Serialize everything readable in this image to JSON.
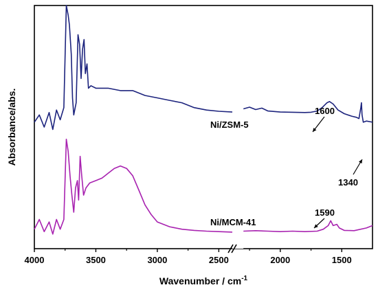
{
  "chart_data": {
    "type": "line",
    "title": "",
    "xlabel": "Wavenumber / cm",
    "xlabel_superscript": "-1",
    "ylabel": "Absorbance/abs.",
    "x_reversed": true,
    "x_axis_break": [
      2390,
      2300
    ],
    "xlim": [
      4000,
      1250
    ],
    "xticks": [
      {
        "value": 4000,
        "label": "4000"
      },
      {
        "value": 3500,
        "label": "3500"
      },
      {
        "value": 3000,
        "label": "3000"
      },
      {
        "value": 2500,
        "label": "2500"
      },
      {
        "value": 2000,
        "label": "2000"
      },
      {
        "value": 1500,
        "label": "1500"
      }
    ],
    "y_ticks_shown": false,
    "grid": false,
    "legend": "none",
    "series": [
      {
        "name": "Ni/ZSM-5",
        "color": "#1c237d",
        "points": [
          [
            4000,
            0.52
          ],
          [
            3960,
            0.55
          ],
          [
            3920,
            0.5
          ],
          [
            3880,
            0.56
          ],
          [
            3850,
            0.49
          ],
          [
            3820,
            0.57
          ],
          [
            3790,
            0.53
          ],
          [
            3760,
            0.58
          ],
          [
            3740,
            1.0
          ],
          [
            3725,
            0.96
          ],
          [
            3715,
            0.92
          ],
          [
            3700,
            0.8
          ],
          [
            3690,
            0.62
          ],
          [
            3680,
            0.55
          ],
          [
            3660,
            0.6
          ],
          [
            3645,
            0.88
          ],
          [
            3632,
            0.84
          ],
          [
            3620,
            0.7
          ],
          [
            3608,
            0.82
          ],
          [
            3596,
            0.86
          ],
          [
            3585,
            0.72
          ],
          [
            3572,
            0.76
          ],
          [
            3560,
            0.66
          ],
          [
            3540,
            0.67
          ],
          [
            3500,
            0.66
          ],
          [
            3400,
            0.66
          ],
          [
            3300,
            0.65
          ],
          [
            3200,
            0.65
          ],
          [
            3100,
            0.63
          ],
          [
            3000,
            0.62
          ],
          [
            2900,
            0.61
          ],
          [
            2800,
            0.6
          ],
          [
            2700,
            0.58
          ],
          [
            2600,
            0.57
          ],
          [
            2500,
            0.565
          ],
          [
            2390,
            0.562
          ],
          [
            2300,
            0.575
          ],
          [
            2250,
            0.582
          ],
          [
            2200,
            0.572
          ],
          [
            2150,
            0.578
          ],
          [
            2100,
            0.566
          ],
          [
            2000,
            0.562
          ],
          [
            1900,
            0.561
          ],
          [
            1800,
            0.56
          ],
          [
            1750,
            0.561
          ],
          [
            1700,
            0.566
          ],
          [
            1660,
            0.58
          ],
          [
            1620,
            0.6
          ],
          [
            1600,
            0.605
          ],
          [
            1570,
            0.595
          ],
          [
            1530,
            0.57
          ],
          [
            1480,
            0.555
          ],
          [
            1420,
            0.545
          ],
          [
            1380,
            0.54
          ],
          [
            1360,
            0.535
          ],
          [
            1345,
            0.58
          ],
          [
            1340,
            0.6
          ],
          [
            1335,
            0.55
          ],
          [
            1325,
            0.52
          ],
          [
            1300,
            0.525
          ],
          [
            1250,
            0.52
          ]
        ]
      },
      {
        "name": "Ni/MCM-41",
        "color": "#a822b0",
        "points": [
          [
            4000,
            0.08
          ],
          [
            3960,
            0.12
          ],
          [
            3920,
            0.07
          ],
          [
            3880,
            0.11
          ],
          [
            3850,
            0.06
          ],
          [
            3820,
            0.12
          ],
          [
            3790,
            0.08
          ],
          [
            3760,
            0.12
          ],
          [
            3740,
            0.45
          ],
          [
            3725,
            0.4
          ],
          [
            3710,
            0.3
          ],
          [
            3695,
            0.22
          ],
          [
            3680,
            0.15
          ],
          [
            3665,
            0.25
          ],
          [
            3650,
            0.28
          ],
          [
            3640,
            0.2
          ],
          [
            3628,
            0.38
          ],
          [
            3615,
            0.3
          ],
          [
            3600,
            0.22
          ],
          [
            3580,
            0.25
          ],
          [
            3550,
            0.27
          ],
          [
            3500,
            0.28
          ],
          [
            3450,
            0.29
          ],
          [
            3400,
            0.31
          ],
          [
            3350,
            0.33
          ],
          [
            3300,
            0.34
          ],
          [
            3250,
            0.33
          ],
          [
            3200,
            0.3
          ],
          [
            3150,
            0.24
          ],
          [
            3100,
            0.18
          ],
          [
            3050,
            0.14
          ],
          [
            3000,
            0.11
          ],
          [
            2900,
            0.09
          ],
          [
            2800,
            0.08
          ],
          [
            2700,
            0.075
          ],
          [
            2600,
            0.072
          ],
          [
            2500,
            0.07
          ],
          [
            2390,
            0.068
          ],
          [
            2300,
            0.072
          ],
          [
            2200,
            0.074
          ],
          [
            2100,
            0.072
          ],
          [
            2000,
            0.07
          ],
          [
            1900,
            0.072
          ],
          [
            1800,
            0.07
          ],
          [
            1700,
            0.072
          ],
          [
            1650,
            0.08
          ],
          [
            1610,
            0.095
          ],
          [
            1590,
            0.115
          ],
          [
            1570,
            0.095
          ],
          [
            1540,
            0.1
          ],
          [
            1520,
            0.085
          ],
          [
            1480,
            0.075
          ],
          [
            1400,
            0.074
          ],
          [
            1300,
            0.085
          ],
          [
            1250,
            0.095
          ]
        ]
      }
    ],
    "annotations": [
      {
        "text": "Ni/ZSM-5",
        "type": "series-label"
      },
      {
        "text": "Ni/MCM-41",
        "type": "series-label"
      },
      {
        "text": "1600",
        "type": "peak-label"
      },
      {
        "text": "1340",
        "type": "peak-label"
      },
      {
        "text": "1590",
        "type": "peak-label"
      }
    ]
  }
}
